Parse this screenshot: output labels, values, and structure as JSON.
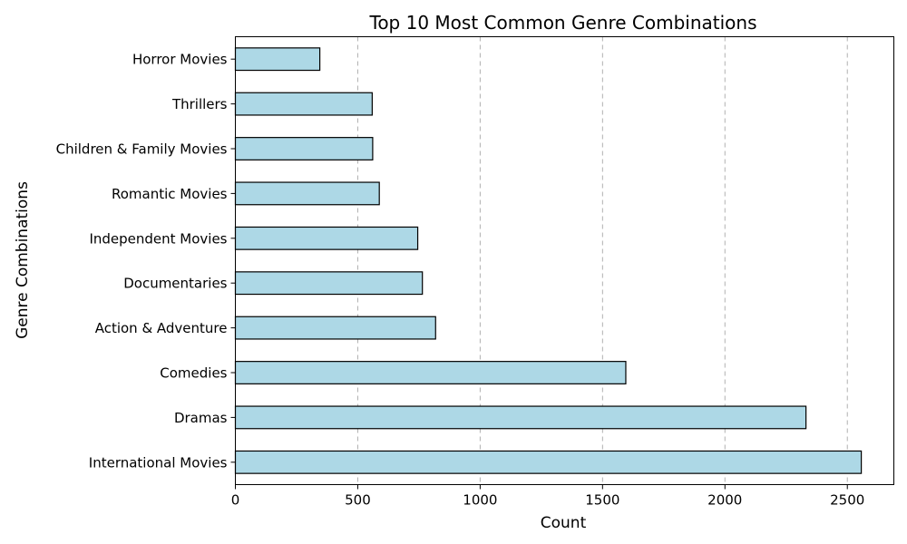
{
  "chart_data": {
    "type": "bar",
    "orientation": "horizontal",
    "title": "Top 10 Most Common Genre Combinations",
    "xlabel": "Count",
    "ylabel": "Genre Combinations",
    "categories": [
      "International Movies",
      "Dramas",
      "Comedies",
      "Action & Adventure",
      "Documentaries",
      "Independent Movies",
      "Romantic Movies",
      "Children & Family Movies",
      "Thrillers",
      "Horror Movies"
    ],
    "values": [
      2557,
      2331,
      1595,
      818,
      764,
      745,
      588,
      561,
      559,
      345
    ],
    "xlim": [
      0,
      2690
    ],
    "xticks": [
      0,
      500,
      1000,
      1500,
      2000,
      2500
    ],
    "grid": "x-axis dashed",
    "legend": "none",
    "bar_color": "#add8e6",
    "edge_color": "#000000"
  }
}
